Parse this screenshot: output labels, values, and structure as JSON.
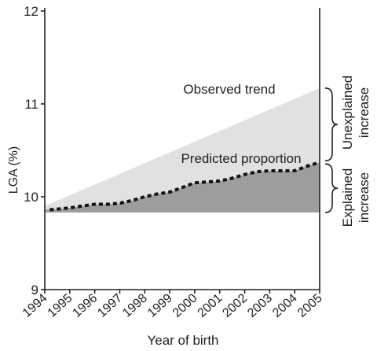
{
  "chart_data": {
    "type": "area",
    "xlabel": "Year of birth",
    "ylabel": "LGA (%)",
    "ylim": [
      9,
      12
    ],
    "xlim": [
      1994,
      2005
    ],
    "y_ticks": [
      "9",
      "10",
      "11",
      "12"
    ],
    "x_ticks": [
      "1994",
      "1995",
      "1996",
      "1997",
      "1998",
      "1999",
      "2000",
      "2001",
      "2002",
      "2003",
      "2004",
      "2005"
    ],
    "baseline": 9.83,
    "series": [
      {
        "name": "Observed trend",
        "x": [
          1994,
          2005
        ],
        "y": [
          9.9,
          11.17
        ]
      },
      {
        "name": "Predicted proportion",
        "x": [
          1994.2,
          1995,
          1995.5,
          1996,
          1996.5,
          1997,
          1997.5,
          1998,
          1998.5,
          1999,
          1999.5,
          2000,
          2000.5,
          2001,
          2001.5,
          2002,
          2002.5,
          2003,
          2003.5,
          2004,
          2004.5,
          2005
        ],
        "y": [
          9.86,
          9.88,
          9.9,
          9.92,
          9.92,
          9.93,
          9.96,
          10.0,
          10.03,
          10.05,
          10.1,
          10.15,
          10.16,
          10.17,
          10.2,
          10.24,
          10.27,
          10.28,
          10.28,
          10.28,
          10.33,
          10.37
        ]
      }
    ],
    "annotations": {
      "unexplained_line1": "Unexplained",
      "unexplained_line2": "increase",
      "explained_line1": "Explained",
      "explained_line2": "increase"
    },
    "colors": {
      "observed_fill": "#e1e1e1",
      "explained_fill": "#9d9d9d",
      "dashed_line": "#111111",
      "axis": "#222222"
    },
    "grid": false,
    "legend": "none"
  }
}
